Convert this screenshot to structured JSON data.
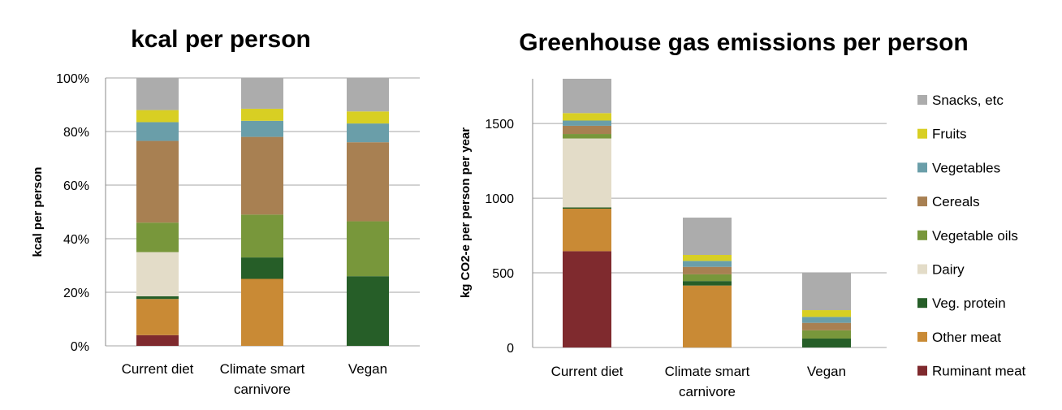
{
  "chart_data": [
    {
      "type": "bar",
      "stacked": true,
      "title": "kcal per person",
      "xlabel": "",
      "ylabel": "kcal per person",
      "ylim": [
        0,
        100
      ],
      "yticks": [
        "0%",
        "20%",
        "40%",
        "60%",
        "80%",
        "100%"
      ],
      "grid": true,
      "categories": [
        [
          "Current diet"
        ],
        [
          "Climate smart",
          "carnivore"
        ],
        [
          "Vegan"
        ]
      ],
      "series": [
        {
          "name": "Ruminant meat",
          "color": "#7f2a2e",
          "values": [
            4,
            0,
            0
          ]
        },
        {
          "name": "Other meat",
          "color": "#c98a35",
          "values": [
            13.5,
            25,
            0
          ]
        },
        {
          "name": "Veg. protein",
          "color": "#265e28",
          "values": [
            1,
            8,
            26
          ]
        },
        {
          "name": "Dairy",
          "color": "#e3dcc8",
          "values": [
            16.5,
            0,
            0
          ]
        },
        {
          "name": "Vegetable oils",
          "color": "#78973b",
          "values": [
            11,
            16,
            20.5
          ]
        },
        {
          "name": "Cereals",
          "color": "#a88052",
          "values": [
            30.5,
            29,
            29.5
          ]
        },
        {
          "name": "Vegetables",
          "color": "#6a9ea9",
          "values": [
            7,
            6,
            7
          ]
        },
        {
          "name": "Fruits",
          "color": "#d8cf23",
          "values": [
            4.5,
            4.5,
            4.5
          ]
        },
        {
          "name": "Snacks, etc",
          "color": "#acacac",
          "values": [
            12,
            11.5,
            12.5
          ]
        }
      ]
    },
    {
      "type": "bar",
      "stacked": true,
      "title": "Greenhouse gas emissions per person",
      "xlabel": "",
      "ylabel": "kg CO2-e per person per year",
      "ylim": [
        0,
        1800
      ],
      "yticks": [
        "0",
        "500",
        "1000",
        "1500"
      ],
      "grid": true,
      "categories": [
        [
          "Current diet"
        ],
        [
          "Climate smart",
          "carnivore"
        ],
        [
          "Vegan"
        ]
      ],
      "series": [
        {
          "name": "Ruminant meat",
          "color": "#7f2a2e",
          "values": [
            645,
            0,
            0
          ]
        },
        {
          "name": "Other meat",
          "color": "#c98a35",
          "values": [
            285,
            415,
            0
          ]
        },
        {
          "name": "Veg. protein",
          "color": "#265e28",
          "values": [
            8,
            30,
            60
          ]
        },
        {
          "name": "Dairy",
          "color": "#e3dcc8",
          "values": [
            462,
            0,
            0
          ]
        },
        {
          "name": "Vegetable oils",
          "color": "#78973b",
          "values": [
            30,
            45,
            55
          ]
        },
        {
          "name": "Cereals",
          "color": "#a88052",
          "values": [
            55,
            50,
            50
          ]
        },
        {
          "name": "Vegetables",
          "color": "#6a9ea9",
          "values": [
            35,
            40,
            40
          ]
        },
        {
          "name": "Fruits",
          "color": "#d8cf23",
          "values": [
            50,
            40,
            45
          ]
        },
        {
          "name": "Snacks, etc",
          "color": "#acacac",
          "values": [
            230,
            250,
            250
          ]
        }
      ],
      "legend": {
        "placement": "right",
        "order": [
          "Snacks, etc",
          "Fruits",
          "Vegetables",
          "Cereals",
          "Vegetable oils",
          "Dairy",
          "Veg. protein",
          "Other meat",
          "Ruminant meat"
        ]
      }
    }
  ]
}
